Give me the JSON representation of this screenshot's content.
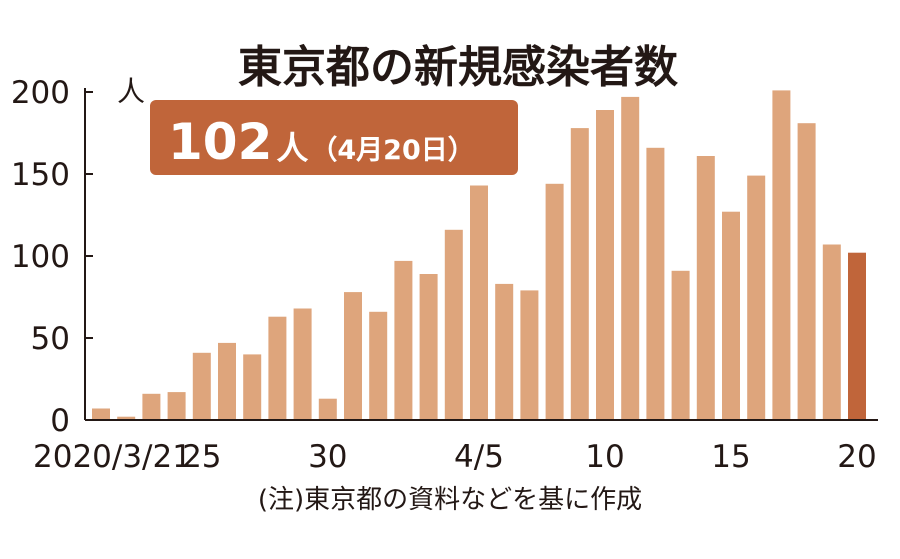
{
  "chart_data": {
    "type": "bar",
    "title": "東京都の新規感染者数",
    "ylabel": "人",
    "ylim": [
      0,
      200
    ],
    "yticks": [
      "0",
      "50",
      "100",
      "150",
      "200"
    ],
    "categories": [
      "3/21",
      "3/22",
      "3/23",
      "3/24",
      "3/25",
      "3/26",
      "3/27",
      "3/28",
      "3/29",
      "3/30",
      "3/31",
      "4/1",
      "4/2",
      "4/3",
      "4/4",
      "4/5",
      "4/6",
      "4/7",
      "4/8",
      "4/9",
      "4/10",
      "4/11",
      "4/12",
      "4/13",
      "4/14",
      "4/15",
      "4/16",
      "4/17",
      "4/18",
      "4/19",
      "4/20"
    ],
    "values": [
      7,
      2,
      16,
      17,
      41,
      47,
      40,
      63,
      68,
      13,
      78,
      66,
      97,
      89,
      116,
      143,
      83,
      79,
      144,
      178,
      189,
      197,
      166,
      91,
      161,
      127,
      149,
      201,
      181,
      107,
      102
    ],
    "xtick_labels": [
      {
        "index": 0,
        "text": "2020/3/21"
      },
      {
        "index": 4,
        "text": "25"
      },
      {
        "index": 9,
        "text": "30"
      },
      {
        "index": 15,
        "text": "4/5"
      },
      {
        "index": 20,
        "text": "10"
      },
      {
        "index": 25,
        "text": "15"
      },
      {
        "index": 30,
        "text": "20"
      }
    ],
    "highlight_index": 30,
    "callout": {
      "value": "102",
      "unit": "人",
      "date": "（4月20日）"
    },
    "note": "(注)東京都の資料などを基に作成",
    "colors": {
      "bar": "#dea57c",
      "bar_highlight": "#c0653a",
      "callout_bg": "#c0653a",
      "axis": "#231815",
      "text": "#231815"
    }
  }
}
